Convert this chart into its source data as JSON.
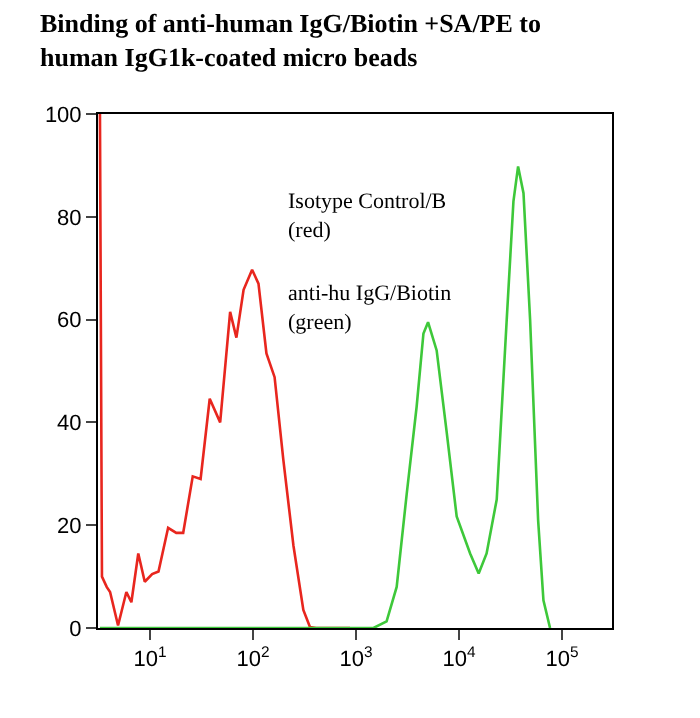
{
  "chart_data": {
    "type": "line",
    "title": "Binding of anti-human IgG/Biotin +SA/PE to\nhuman IgG1k-coated micro beads",
    "series": [
      {
        "color": "#e8261e",
        "x": [
          3.27,
          3.42,
          3.8,
          4.1,
          4.9,
          5.9,
          6.6,
          7.7,
          8.9,
          10.5,
          12.1,
          15,
          18,
          21,
          26,
          31,
          38,
          48,
          60,
          69,
          81,
          98,
          113,
          135,
          162,
          197,
          247,
          308,
          357,
          409,
          875
        ],
        "values": [
          100,
          10,
          8,
          7,
          0.5,
          7,
          5,
          14.5,
          9,
          10.5,
          11,
          19.5,
          18.5,
          18.5,
          29.5,
          29,
          44.6,
          40,
          61.5,
          56.5,
          65.8,
          69.7,
          67,
          53.4,
          48.8,
          32.7,
          16,
          3.5,
          0.2,
          0,
          0
        ]
      },
      {
        "color": "#3ec83a",
        "x": [
          3.27,
          1476,
          1980,
          2480,
          3100,
          3870,
          4510,
          5000,
          6060,
          7590,
          9480,
          12800,
          15500,
          18500,
          23200,
          29000,
          33700,
          37400,
          42200,
          48900,
          58500,
          65900,
          76400
        ],
        "values": [
          0,
          0,
          1.3,
          8,
          26,
          43,
          57.3,
          59.5,
          54,
          38,
          21.7,
          14.5,
          10.6,
          14.5,
          25,
          60,
          83,
          89.8,
          84.6,
          60,
          21,
          5.4,
          0
        ]
      }
    ],
    "log": "x",
    "xlim": [
      3.13,
      305000
    ],
    "ylim": [
      0,
      100
    ],
    "xticks": [
      {
        "value": 10,
        "label": "10$^{1}$"
      },
      {
        "value": 100,
        "label": "10$^{2}$"
      },
      {
        "value": 1000,
        "label": "10$^{3}$"
      },
      {
        "value": 10000,
        "label": "10$^{4}$"
      },
      {
        "value": 100000,
        "label": "10$^{5}$"
      }
    ],
    "yticks": [
      0,
      20,
      40,
      60,
      80,
      100
    ],
    "annotations": [
      "Isotype Control/B\n(red)",
      "anti-hu IgG/Biotin\n(green)"
    ],
    "line_style": "solid"
  }
}
